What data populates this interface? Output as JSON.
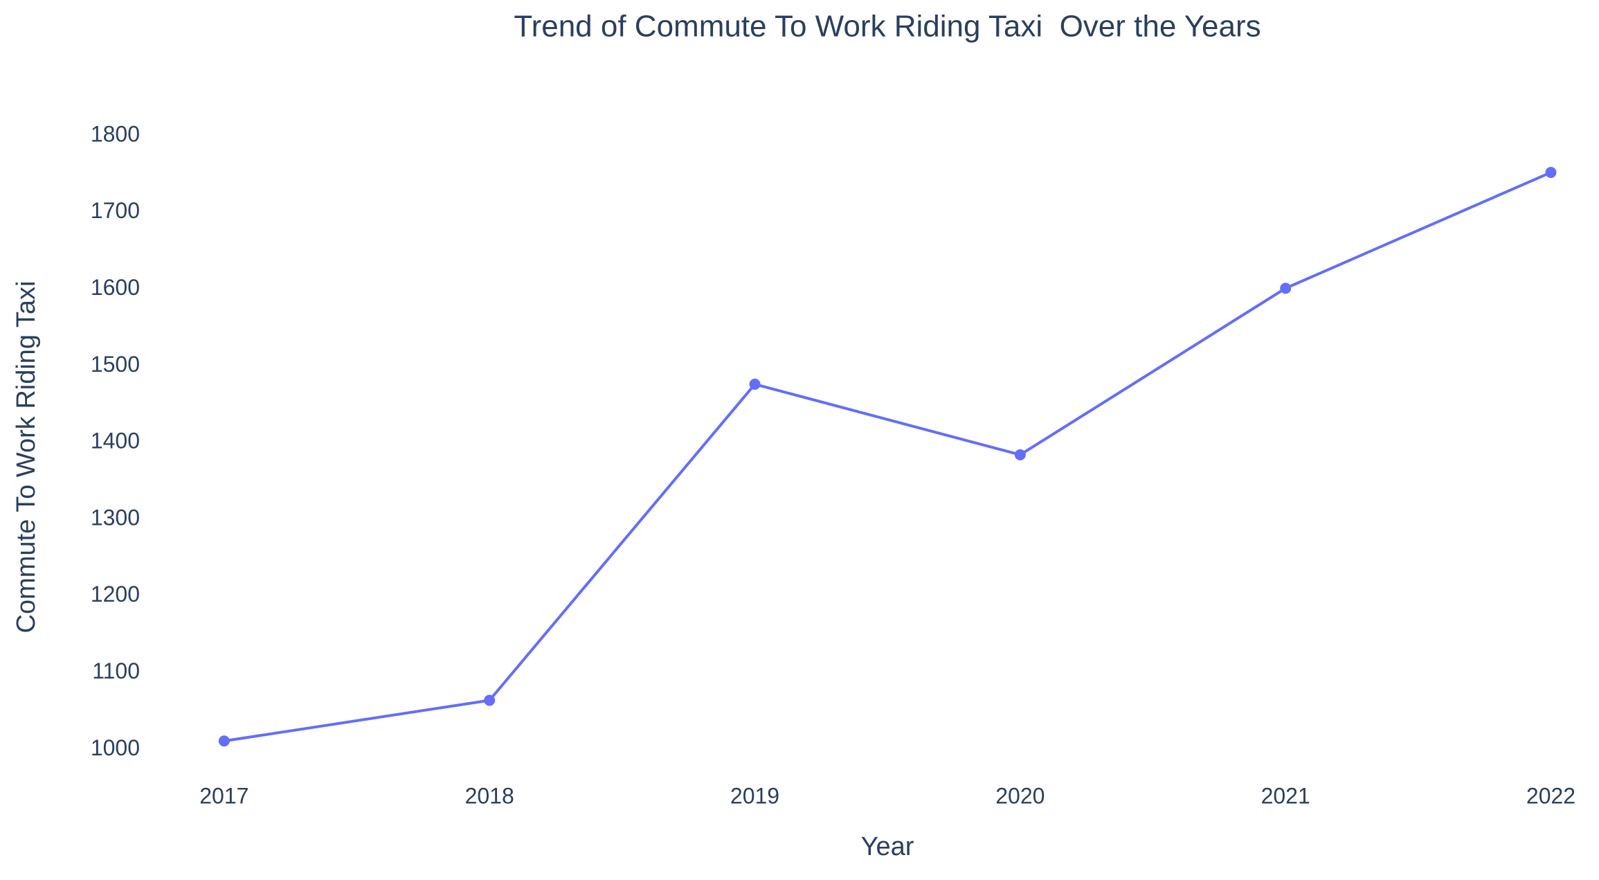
{
  "chart_data": {
    "type": "line",
    "title": "Trend of Commute To Work Riding Taxi  Over the Years",
    "x_label": "Year",
    "y_label": "Commute To Work Riding Taxi",
    "x": [
      2017,
      2018,
      2019,
      2020,
      2021,
      2022
    ],
    "series": [
      {
        "name": "Commute To Work Riding Taxi",
        "color": "#636efa",
        "values": [
          1011,
          1064,
          1476,
          1384,
          1601,
          1752
        ]
      }
    ],
    "xlim": [
      2016.75,
      2022.15
    ],
    "xticks": [
      2017,
      2018,
      2019,
      2020,
      2021,
      2022
    ],
    "ylim": [
      967,
      1817
    ],
    "yticks": [
      1000,
      1100,
      1200,
      1300,
      1400,
      1500,
      1600,
      1700,
      1800
    ],
    "grid": false
  }
}
